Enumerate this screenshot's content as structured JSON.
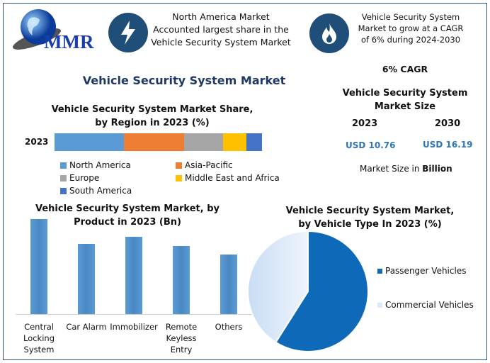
{
  "logo": {
    "text": "MMR"
  },
  "header": {
    "highlight1": "North America Market Accounted largest share in the Vehicle Security System Market",
    "highlight1_icon": "lightning-icon",
    "highlight2": "Vehicle Security System Market to grow at a CAGR of 6% during 2024-2030",
    "highlight2_icon": "flame-icon"
  },
  "main_title": "Vehicle Security System Market",
  "summary": {
    "cagr": "6% CAGR",
    "size_title": "Vehicle Security System Market Size",
    "year1": "2023",
    "year2": "2030",
    "value1": "USD 10.76",
    "value2": "USD 16.19",
    "note_prefix": "Market Size in ",
    "note_bold": "Billion"
  },
  "colors": {
    "accent": "#1f4e79",
    "value_blue": "#2e75b6"
  },
  "chart_data": [
    {
      "type": "bar",
      "orientation": "horizontal-stacked",
      "title": "Vehicle Security System Market Share, by Region in 2023 (%)",
      "categories": [
        "2023"
      ],
      "series": [
        {
          "name": "North America",
          "values": [
            33.4
          ],
          "color": "#5b9bd5"
        },
        {
          "name": "Asia-Pacific",
          "values": [
            29.0
          ],
          "color": "#ed7d31"
        },
        {
          "name": "Europe",
          "values": [
            18.8
          ],
          "color": "#a5a5a5"
        },
        {
          "name": "Middle East and Africa",
          "values": [
            11.3
          ],
          "color": "#ffc000"
        },
        {
          "name": "South America",
          "values": [
            7.5
          ],
          "color": "#4472c4"
        }
      ],
      "legend": "bottom"
    },
    {
      "type": "bar",
      "title": "Vehicle Security System Market, by Product in 2023 (Bn)",
      "categories": [
        "Central Locking System",
        "Car Alarm",
        "Immobilizer",
        "Remote Keyless Entry",
        "Others"
      ],
      "category_lines": [
        [
          "Central",
          "Locking",
          "System"
        ],
        [
          "Car Alarm"
        ],
        [
          "Immobilizer"
        ],
        [
          "Remote",
          "Keyless",
          "Entry"
        ],
        [
          "Others"
        ]
      ],
      "values": [
        1.0,
        0.74,
        0.81,
        0.72,
        0.63
      ],
      "grid": false
    },
    {
      "type": "pie",
      "title": "Vehicle Security System Market, by Vehicle Type In 2023 (%)",
      "labels": [
        "Passenger Vehicles",
        "Commercial Vehicles"
      ],
      "values": [
        59,
        41
      ],
      "colors": [
        "#0e6ab8",
        "#dce9f8"
      ],
      "legend": "right"
    }
  ]
}
